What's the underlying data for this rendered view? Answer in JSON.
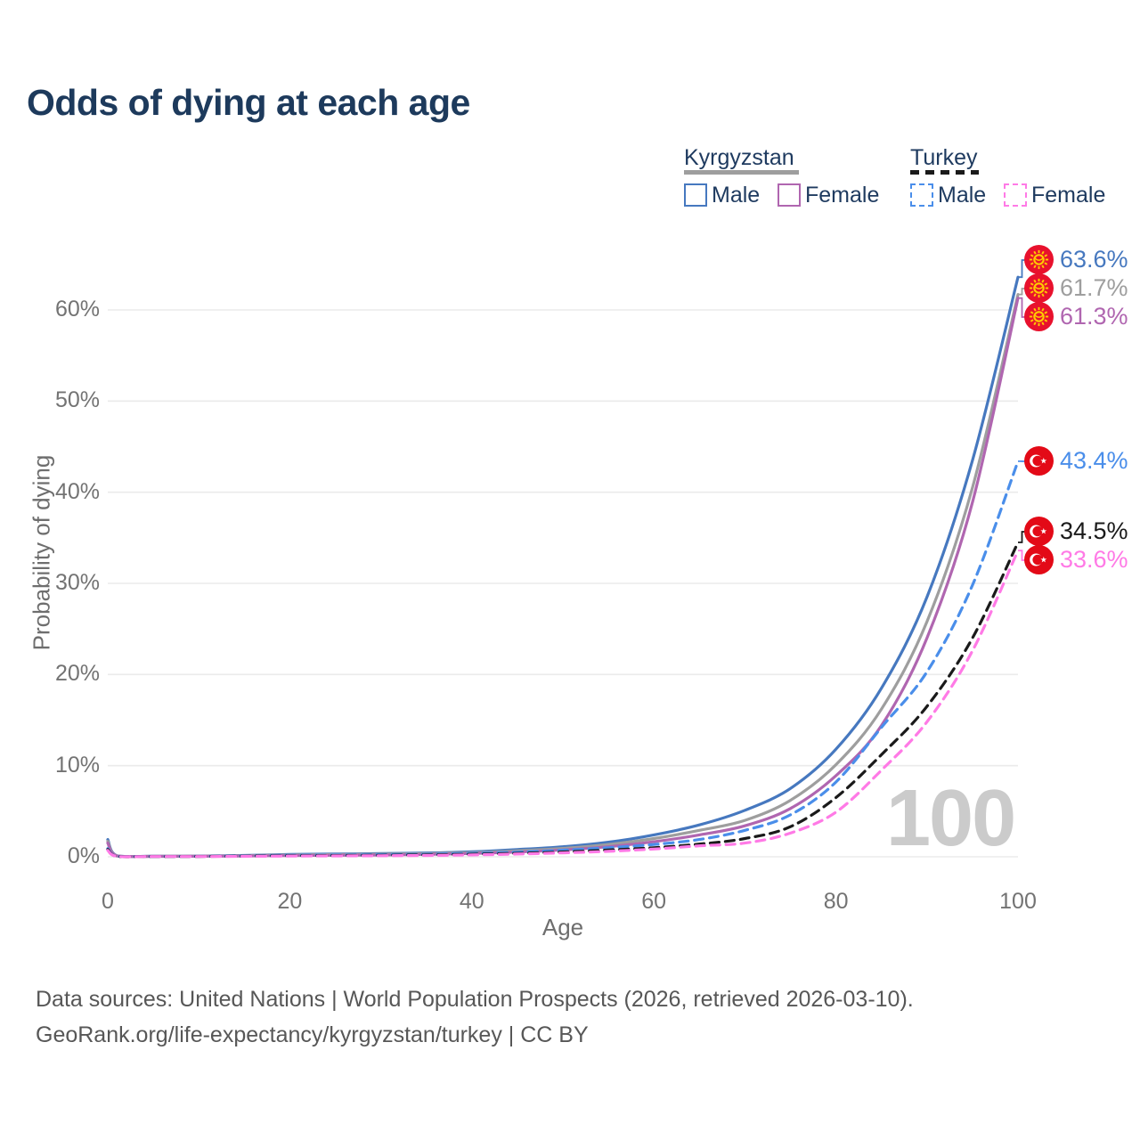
{
  "title": "Odds of dying at each age",
  "watermark": "100",
  "legend": {
    "groups": [
      {
        "name": "Kyrgyzstan",
        "underline_color": "#9e9e9e",
        "underline_dashed": false,
        "items": [
          {
            "label": "Male",
            "color": "#4678bf",
            "dashed": false
          },
          {
            "label": "Female",
            "color": "#b066b0",
            "dashed": false
          }
        ]
      },
      {
        "name": "Turkey",
        "underline_color": "#1a1a1a",
        "underline_dashed": true,
        "items": [
          {
            "label": "Male",
            "color": "#4a8eea",
            "dashed": true
          },
          {
            "label": "Female",
            "color": "#ff7ae6",
            "dashed": true
          }
        ]
      }
    ]
  },
  "footer": {
    "line1": "Data sources: United Nations | World Population Prospects (2026, retrieved 2026-03-10).",
    "line2": "GeoRank.org/life-expectancy/kyrgyzstan/turkey | CC BY"
  },
  "chart_data": {
    "type": "line",
    "title": "Odds of dying at each age",
    "xlabel": "Age",
    "ylabel": "Probability of dying",
    "xlim": [
      0,
      100
    ],
    "ylim_percent": [
      0,
      66
    ],
    "x_ticks": [
      0,
      20,
      40,
      60,
      80,
      100
    ],
    "y_ticks_percent": [
      0,
      10,
      20,
      30,
      40,
      50,
      60
    ],
    "grid": true,
    "legend_position": "top-right",
    "ages": [
      0,
      1,
      5,
      10,
      15,
      20,
      25,
      30,
      35,
      40,
      45,
      50,
      55,
      60,
      65,
      70,
      75,
      80,
      85,
      90,
      95,
      100
    ],
    "series": [
      {
        "name": "Kyrgyzstan Male",
        "country": "kyrgyzstan",
        "color": "#4678bf",
        "dashed": false,
        "end_label": "63.6%",
        "values_percent": [
          1.9,
          0.12,
          0.06,
          0.08,
          0.15,
          0.25,
          0.3,
          0.35,
          0.42,
          0.55,
          0.8,
          1.1,
          1.6,
          2.4,
          3.5,
          5.1,
          7.5,
          11.8,
          18.5,
          28.5,
          43.5,
          63.6
        ]
      },
      {
        "name": "Kyrgyzstan Both sexes",
        "country": "kyrgyzstan",
        "color": "#9e9e9e",
        "dashed": false,
        "end_label": "61.7%",
        "values_percent": [
          1.7,
          0.1,
          0.05,
          0.07,
          0.12,
          0.2,
          0.24,
          0.28,
          0.34,
          0.45,
          0.65,
          0.92,
          1.35,
          2.0,
          2.9,
          4.0,
          6.2,
          10.1,
          16.2,
          25.8,
          40.5,
          61.7
        ]
      },
      {
        "name": "Kyrgyzstan Female",
        "country": "kyrgyzstan",
        "color": "#b066b0",
        "dashed": false,
        "end_label": "61.3%",
        "values_percent": [
          1.5,
          0.09,
          0.05,
          0.06,
          0.09,
          0.14,
          0.17,
          0.2,
          0.26,
          0.36,
          0.52,
          0.75,
          1.1,
          1.65,
          2.4,
          3.4,
          5.3,
          8.9,
          14.4,
          24.0,
          38.9,
          61.3
        ]
      },
      {
        "name": "Turkey Male",
        "country": "turkey",
        "color": "#4a8eea",
        "dashed": true,
        "end_label": "43.4%",
        "values_percent": [
          0.9,
          0.07,
          0.04,
          0.05,
          0.1,
          0.17,
          0.2,
          0.23,
          0.28,
          0.38,
          0.52,
          0.72,
          1.0,
          1.35,
          1.9,
          2.9,
          4.6,
          8.2,
          14.2,
          20.3,
          29.8,
          43.4
        ]
      },
      {
        "name": "Turkey Both sexes",
        "country": "turkey",
        "color": "#1a1a1a",
        "dashed": true,
        "end_label": "34.5%",
        "values_percent": [
          0.8,
          0.06,
          0.03,
          0.04,
          0.07,
          0.12,
          0.14,
          0.17,
          0.21,
          0.28,
          0.38,
          0.53,
          0.74,
          1.0,
          1.4,
          2.0,
          3.3,
          6.5,
          11.2,
          16.5,
          24.0,
          34.5
        ]
      },
      {
        "name": "Turkey Female",
        "country": "turkey",
        "color": "#ff7ae6",
        "dashed": true,
        "end_label": "33.6%",
        "values_percent": [
          0.7,
          0.05,
          0.03,
          0.03,
          0.05,
          0.08,
          0.1,
          0.12,
          0.15,
          0.21,
          0.3,
          0.43,
          0.6,
          0.85,
          1.2,
          1.5,
          2.6,
          4.9,
          9.5,
          14.8,
          22.6,
          33.6
        ]
      }
    ],
    "flag_colors": {
      "kyrgyzstan_red": "#e8112d",
      "kyrgyzstan_yellow": "#ffcc00",
      "turkey_red": "#e30a17"
    }
  }
}
